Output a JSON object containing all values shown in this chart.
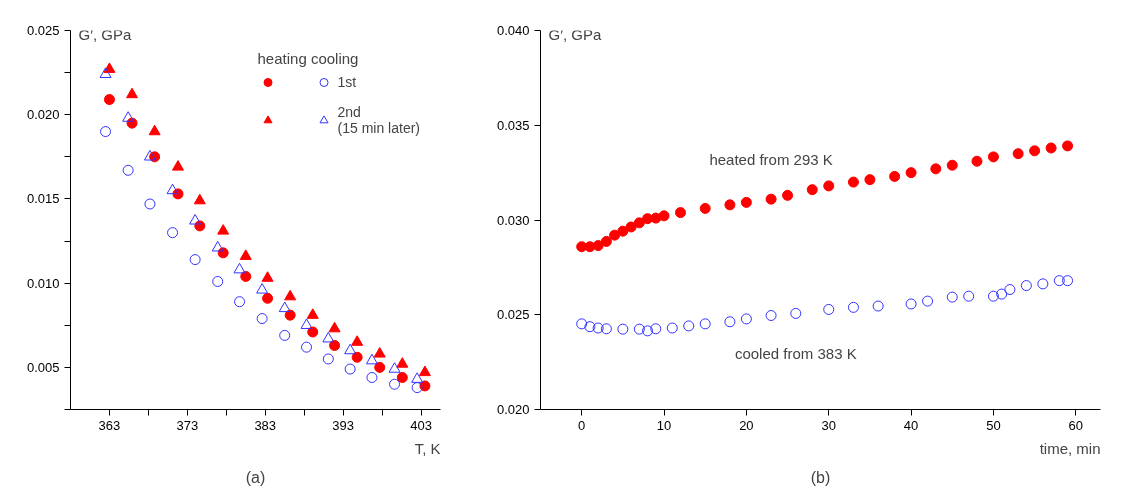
{
  "chart_data": [
    {
      "type": "scatter",
      "title": "(a)",
      "xlabel": "T, K",
      "ylabel": "G′, GPa",
      "legend_title": "heating cooling",
      "legend": "top right",
      "xlim": [
        358,
        405.5
      ],
      "ylim": [
        0.0025,
        0.025
      ],
      "xticks": [
        363,
        {
          "value": 368,
          "label": null
        },
        373,
        {
          "value": 378,
          "label": null
        },
        383,
        {
          "value": 388,
          "label": null
        },
        393,
        {
          "value": 398,
          "label": null
        },
        403
      ],
      "yticks": [
        {
          "value": 0.0025,
          "label": null
        },
        {
          "value": 0.005,
          "label": "0.005"
        },
        {
          "value": 0.0075,
          "label": null
        },
        {
          "value": 0.01,
          "label": "0.010"
        },
        {
          "value": 0.0125,
          "label": null
        },
        {
          "value": 0.015,
          "label": "0.015"
        },
        {
          "value": 0.0175,
          "label": null
        },
        {
          "value": 0.02,
          "label": "0.020"
        },
        {
          "value": 0.0225,
          "label": null
        },
        {
          "value": 0.025,
          "label": "0.025"
        }
      ],
      "series": [
        {
          "color": "#ff0000",
          "marker": "circle",
          "x": [
            363,
            365.9,
            368.8,
            371.8,
            374.6,
            377.6,
            380.5,
            383.3,
            386.2,
            389.1,
            391.9,
            394.8,
            397.7,
            400.6,
            403.5
          ],
          "values": [
            0.0209,
            0.0195,
            0.0175,
            0.0153,
            0.0134,
            0.0118,
            0.0104,
            0.0091,
            0.0081,
            0.0071,
            0.0063,
            0.0056,
            0.005,
            0.0044,
            0.0039
          ]
        },
        {
          "color": "#ff0000",
          "marker": "triangle",
          "x": [
            363,
            365.9,
            368.8,
            371.8,
            374.6,
            377.6,
            380.5,
            383.3,
            386.2,
            389.1,
            391.9,
            394.8,
            397.7,
            400.6,
            403.5
          ],
          "values": [
            0.0227,
            0.0212,
            0.019,
            0.0169,
            0.0149,
            0.0131,
            0.0116,
            0.0103,
            0.0092,
            0.0081,
            0.0073,
            0.0065,
            0.0058,
            0.0052,
            0.0047
          ]
        },
        {
          "name": "1st",
          "color": "#3333ff",
          "marker": "circle_open",
          "x": [
            362.5,
            365.4,
            368.2,
            371.1,
            374.0,
            376.9,
            379.7,
            382.6,
            385.5,
            388.3,
            391.1,
            393.9,
            396.7,
            399.6,
            402.5
          ],
          "values": [
            0.019,
            0.0167,
            0.0147,
            0.013,
            0.0114,
            0.0101,
            0.0089,
            0.0079,
            0.0069,
            0.0062,
            0.0055,
            0.0049,
            0.0044,
            0.004,
            0.0038
          ]
        },
        {
          "name": "2nd\n(15 min later)",
          "color": "#3333ff",
          "marker": "triangle_open",
          "x": [
            362.5,
            365.4,
            368.2,
            371.1,
            374.0,
            376.9,
            379.7,
            382.6,
            385.5,
            388.3,
            391.1,
            393.9,
            396.7,
            399.6,
            402.5
          ],
          "values": [
            0.0224,
            0.0198,
            0.0175,
            0.0155,
            0.0137,
            0.0121,
            0.0108,
            0.0096,
            0.0085,
            0.0075,
            0.0067,
            0.006,
            0.0054,
            0.0049,
            0.0043
          ]
        }
      ]
    },
    {
      "type": "scatter",
      "title": "(b)",
      "xlabel": "time, min",
      "ylabel": "G′, GPa",
      "xlim": [
        -5,
        63
      ],
      "ylim": [
        0.02,
        0.04
      ],
      "xticks": [
        0,
        10,
        20,
        30,
        40,
        50,
        60
      ],
      "yticks": [
        {
          "value": 0.02,
          "label": "0.020"
        },
        {
          "value": 0.025,
          "label": "0.025"
        },
        {
          "value": 0.03,
          "label": "0.030"
        },
        {
          "value": 0.035,
          "label": "0.035"
        },
        {
          "value": 0.04,
          "label": "0.040"
        }
      ],
      "annotations": [
        "heated from 293 K",
        "cooled from 383 K"
      ],
      "series": [
        {
          "color": "#ff0000",
          "marker": "circle",
          "x": [
            0,
            1,
            2,
            3,
            4,
            5,
            6,
            7,
            8,
            9,
            10,
            12,
            15,
            18,
            20,
            23,
            25,
            28,
            30,
            33,
            35,
            38,
            40,
            43,
            45,
            48,
            50,
            53,
            55,
            57,
            59
          ],
          "values": [
            0.02859,
            0.02859,
            0.02865,
            0.02887,
            0.0292,
            0.02941,
            0.02963,
            0.02985,
            0.03007,
            0.0301,
            0.03022,
            0.03039,
            0.03061,
            0.0308,
            0.03093,
            0.0311,
            0.0313,
            0.0316,
            0.0318,
            0.032,
            0.03213,
            0.0323,
            0.0325,
            0.0327,
            0.03289,
            0.0331,
            0.03333,
            0.0335,
            0.03365,
            0.0338,
            0.03391
          ]
        },
        {
          "color": "#3333ff",
          "marker": "circle_open",
          "x": [
            0,
            1,
            2,
            3,
            5,
            7,
            8,
            9,
            11,
            13,
            15,
            18,
            20,
            23,
            26,
            30,
            33,
            36,
            40,
            42,
            45,
            47,
            50,
            51,
            52,
            54,
            56,
            58,
            59
          ],
          "values": [
            0.02452,
            0.02437,
            0.0243,
            0.02426,
            0.02424,
            0.02424,
            0.02415,
            0.02426,
            0.0243,
            0.02441,
            0.02452,
            0.02463,
            0.02478,
            0.02496,
            0.02507,
            0.02528,
            0.02539,
            0.02546,
            0.02557,
            0.02572,
            0.02593,
            0.02598,
            0.02598,
            0.02609,
            0.02633,
            0.02654,
            0.02663,
            0.0268,
            0.0268
          ]
        }
      ]
    }
  ]
}
